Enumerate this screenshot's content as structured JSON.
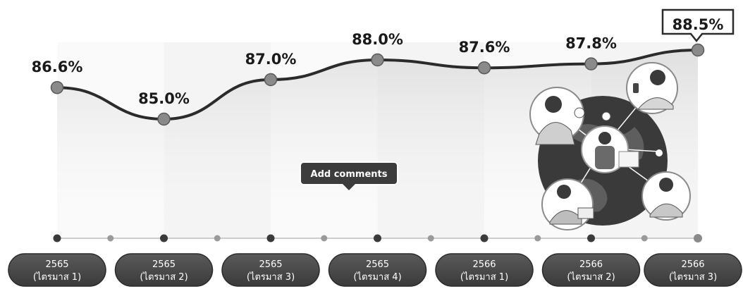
{
  "chart_data": {
    "type": "line",
    "categories": [
      [
        "2565",
        "(ไตรมาส 1)"
      ],
      [
        "2565",
        "(ไตรมาส 2)"
      ],
      [
        "2565",
        "(ไตรมาส 3)"
      ],
      [
        "2565",
        "(ไตรมาส 4)"
      ],
      [
        "2566",
        "(ไตรมาส 1)"
      ],
      [
        "2566",
        "(ไตรมาส 2)"
      ],
      [
        "2566",
        "(ไตรมาส 3)"
      ]
    ],
    "values": [
      86.6,
      85.0,
      87.0,
      88.0,
      87.6,
      87.8,
      88.5
    ],
    "value_labels": [
      "86.6%",
      "85.0%",
      "87.0%",
      "88.0%",
      "87.6%",
      "87.8%",
      "88.5%"
    ],
    "highlighted_point": "88.5%",
    "grid": false,
    "colors": {
      "line": "#2b2b2b",
      "marker": "#8a8a8a",
      "pill": "#4a4a4a",
      "area": "#d9d9d9"
    }
  },
  "tooltip": {
    "text": "Add comments"
  },
  "illustration": {
    "icon": "people-network-globe-icon"
  }
}
